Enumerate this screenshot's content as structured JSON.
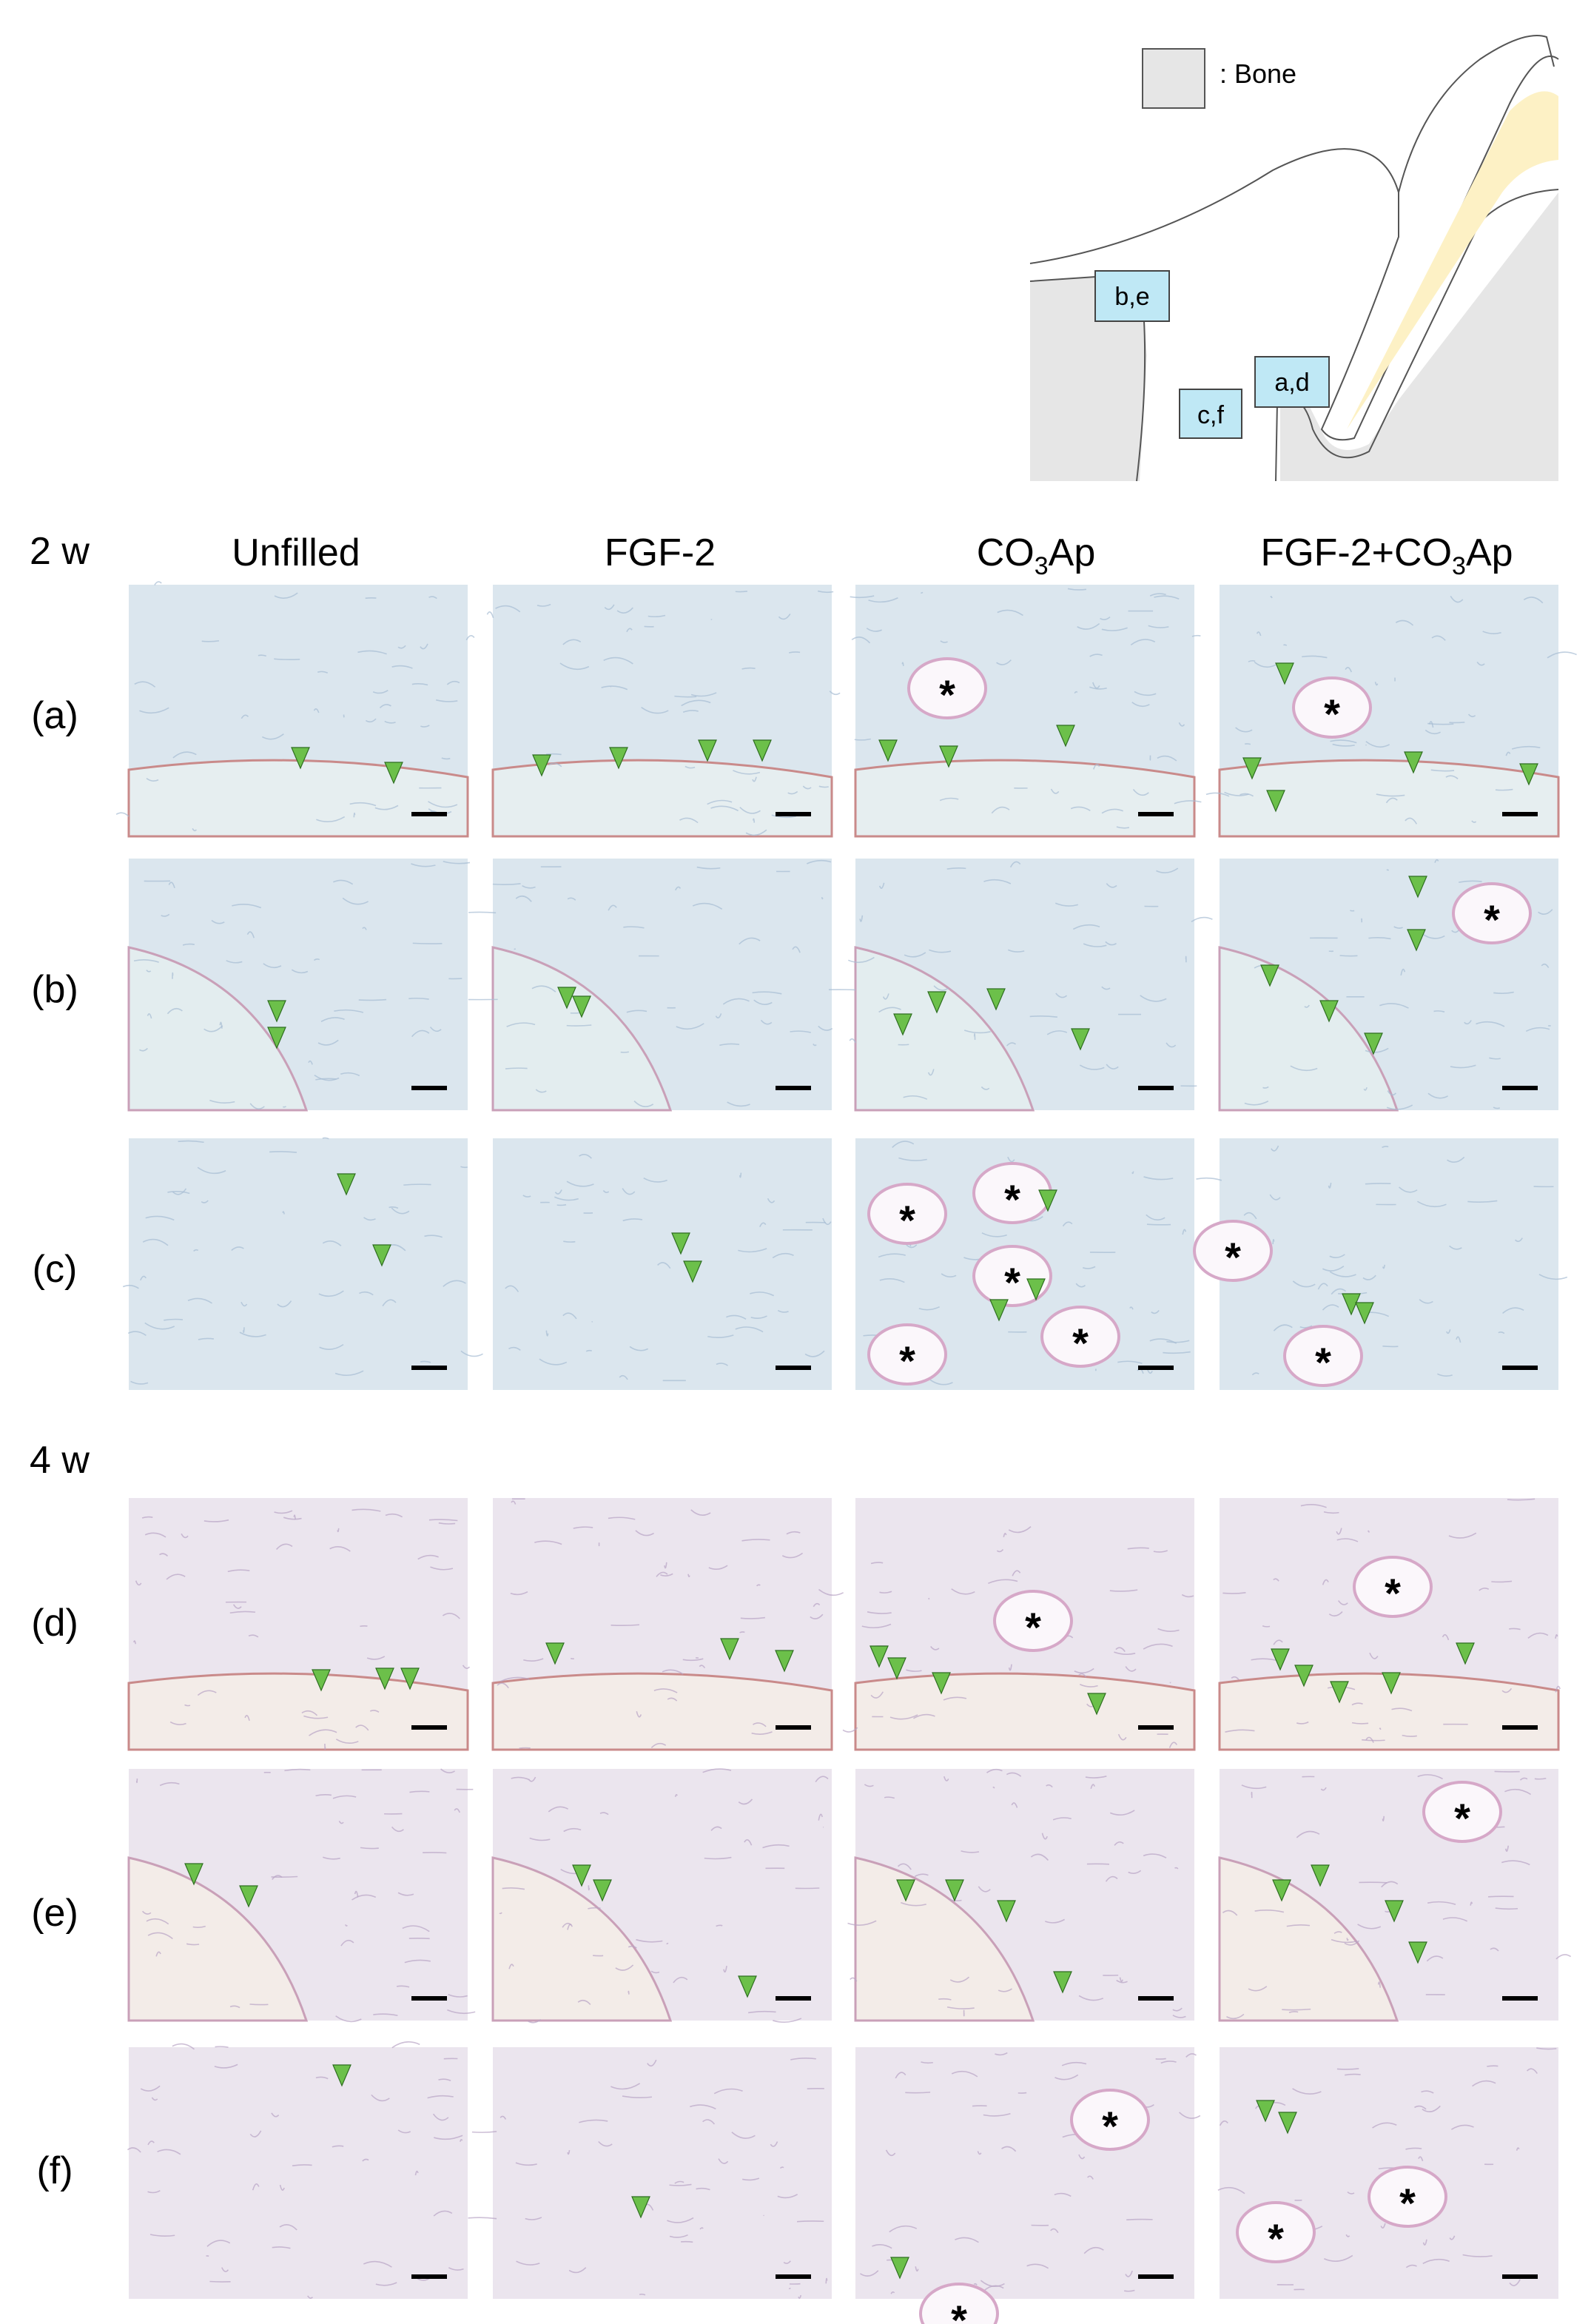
{
  "schematic": {
    "legend": ": Bone",
    "regions": [
      "b,e",
      "a,d",
      "c,f"
    ]
  },
  "groups": [
    {
      "label": "2 w"
    },
    {
      "label": "4 w"
    }
  ],
  "columns": [
    {
      "parts": [
        "Unfilled"
      ]
    },
    {
      "parts": [
        "FGF-2"
      ]
    },
    {
      "parts": [
        "CO",
        "3",
        "Ap"
      ]
    },
    {
      "parts": [
        "FGF-2+CO",
        "3",
        "Ap"
      ]
    }
  ],
  "rows": [
    {
      "label": "(a)",
      "asterisks": [
        [],
        [],
        [
          "*"
        ],
        [
          "*"
        ]
      ]
    },
    {
      "label": "(b)",
      "asterisks": [
        [],
        [],
        [],
        [
          "*"
        ]
      ]
    },
    {
      "label": "(c)",
      "asterisks": [
        [],
        [],
        [
          "*",
          "*",
          "*",
          "*",
          "*"
        ],
        [
          "*",
          "*"
        ]
      ]
    },
    {
      "label": "(d)",
      "asterisks": [
        [],
        [],
        [
          "*"
        ],
        [
          "*"
        ]
      ]
    },
    {
      "label": "(e)",
      "asterisks": [
        [],
        [],
        [],
        [
          "*"
        ]
      ]
    },
    {
      "label": "(f)",
      "asterisks": [
        [],
        [],
        [
          "*",
          "*"
        ],
        [
          "*",
          "*"
        ]
      ]
    }
  ]
}
